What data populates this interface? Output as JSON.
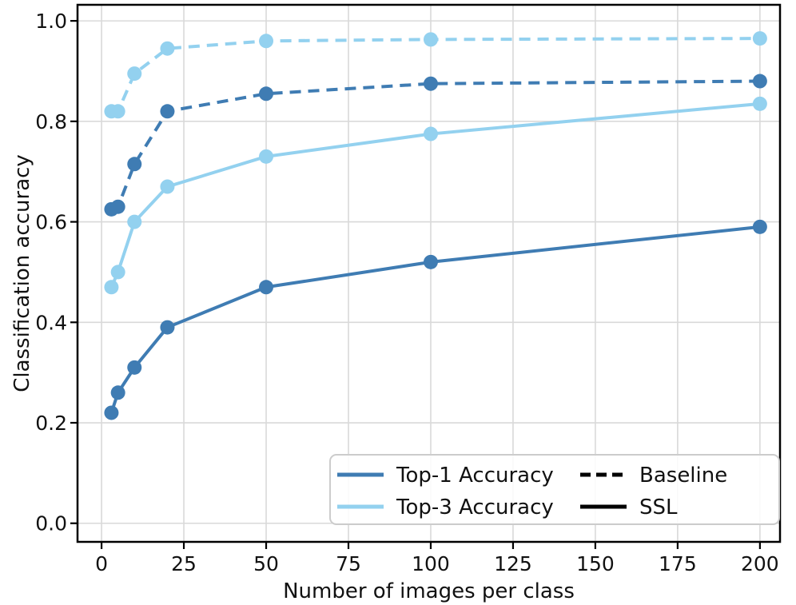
{
  "chart_data": {
    "type": "line",
    "title": "",
    "xlabel": "Number of images per class",
    "ylabel": "Classification accuracy",
    "x": [
      3,
      5,
      10,
      20,
      50,
      100,
      200
    ],
    "xticks": [
      0,
      25,
      50,
      75,
      100,
      125,
      150,
      175,
      200
    ],
    "yticks": [
      0.0,
      0.2,
      0.4,
      0.6,
      0.8,
      1.0
    ],
    "xlim": [
      -7.3,
      206.1
    ],
    "ylim": [
      -0.037,
      1.032
    ],
    "grid": true,
    "grid_color": "#d9d9d9",
    "spine_color": "#000000",
    "colors": {
      "dark_blue": "#3f7cb3",
      "light_blue": "#93d1ef",
      "black": "#000000"
    },
    "series": [
      {
        "name": "Top-3 Accuracy (Baseline)",
        "color": "#93d1ef",
        "style": "dashed",
        "values": [
          0.82,
          0.82,
          0.895,
          0.945,
          0.96,
          0.963,
          0.965
        ]
      },
      {
        "name": "Top-1 Accuracy (Baseline)",
        "color": "#3f7cb3",
        "style": "dashed",
        "values": [
          0.625,
          0.63,
          0.715,
          0.82,
          0.855,
          0.875,
          0.88
        ]
      },
      {
        "name": "Top-3 Accuracy (SSL)",
        "color": "#93d1ef",
        "style": "solid",
        "values": [
          0.47,
          0.5,
          0.6,
          0.67,
          0.73,
          0.775,
          0.835
        ]
      },
      {
        "name": "Top-1 Accuracy (SSL)",
        "color": "#3f7cb3",
        "style": "solid",
        "values": [
          0.22,
          0.26,
          0.31,
          0.39,
          0.47,
          0.52,
          0.59
        ]
      }
    ],
    "legend": {
      "position": "lower right",
      "entries": [
        {
          "label": "Top-1 Accuracy",
          "color": "#3f7cb3",
          "style": "solid",
          "col": 0,
          "row": 0
        },
        {
          "label": "Top-3 Accuracy",
          "color": "#93d1ef",
          "style": "solid",
          "col": 0,
          "row": 1
        },
        {
          "label": "Baseline",
          "color": "#000000",
          "style": "dashed",
          "col": 1,
          "row": 0
        },
        {
          "label": "SSL",
          "color": "#000000",
          "style": "solid",
          "col": 1,
          "row": 1
        }
      ]
    }
  }
}
